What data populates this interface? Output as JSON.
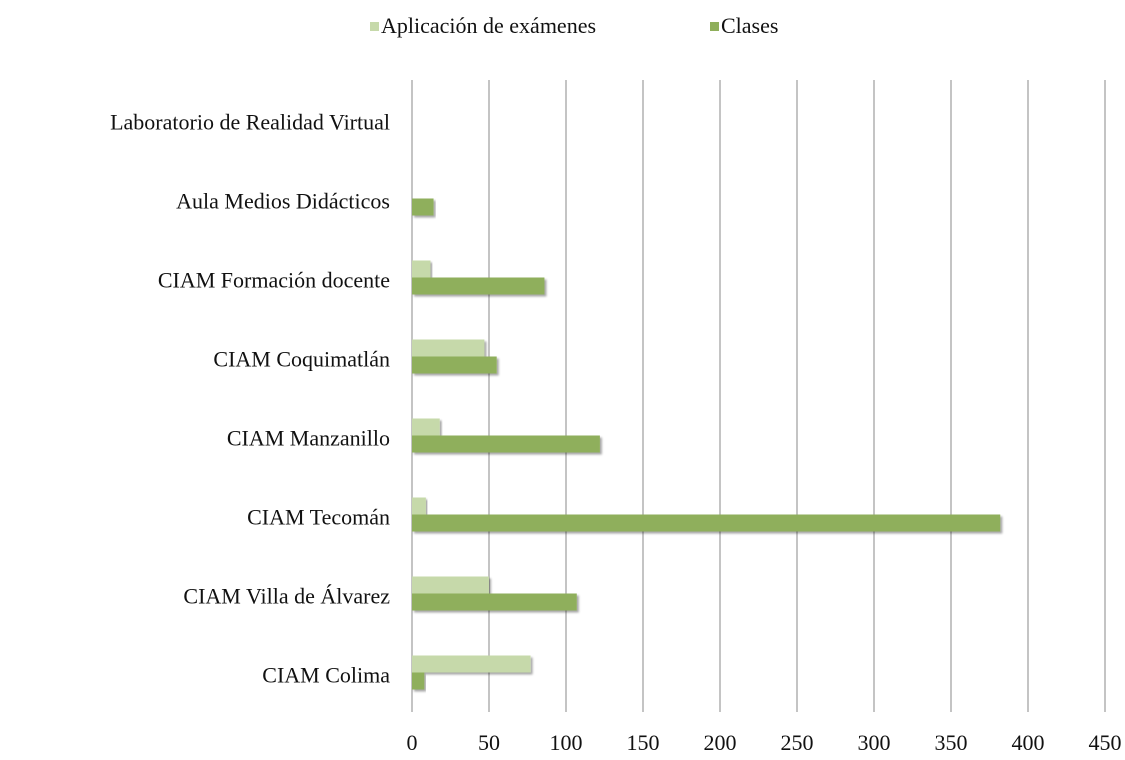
{
  "chart_data": {
    "type": "bar",
    "orientation": "horizontal",
    "categories": [
      "Laboratorio de Realidad Virtual",
      "Aula Medios Didácticos",
      "CIAM Formación docente",
      "CIAM Coquimatlán",
      "CIAM Manzanillo",
      "CIAM Tecomán",
      "CIAM Villa de Álvarez",
      "CIAM Colima"
    ],
    "series": [
      {
        "name": "Aplicación de exámenes",
        "color": "#c6d9aa",
        "values": [
          0,
          0,
          12,
          47,
          18,
          9,
          50,
          77
        ]
      },
      {
        "name": "Clases",
        "color": "#8faf5b",
        "values": [
          0,
          14,
          86,
          55,
          122,
          382,
          107,
          8
        ]
      }
    ],
    "xlim": [
      0,
      450
    ],
    "xticks": [
      0,
      50,
      100,
      150,
      200,
      250,
      300,
      350,
      400,
      450
    ],
    "grid": true,
    "legend": "top"
  }
}
